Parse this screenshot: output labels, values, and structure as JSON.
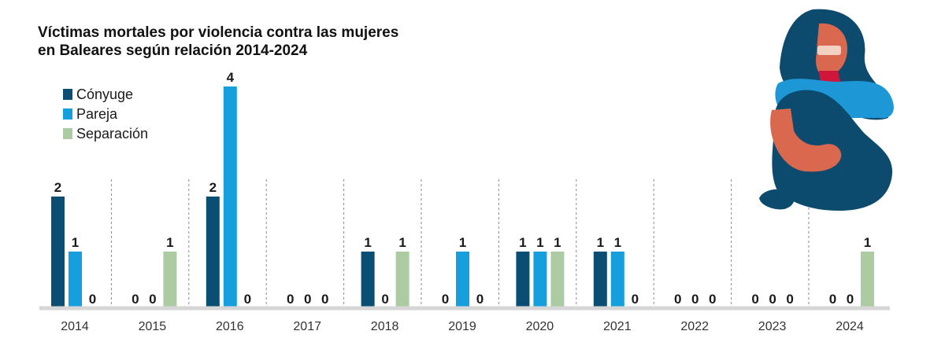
{
  "title": {
    "line1": "Víctimas mortales por violencia contra las mujeres",
    "line2": "en Baleares según relación 2014-2024"
  },
  "colors": {
    "conyuge": "#0a4f73",
    "pareja": "#159fdc",
    "separacion": "#adcba2",
    "baseline": "#d6d6d6",
    "separator": "#8a8a8a"
  },
  "illustration": {
    "icon": "seated-woman-with-gagged-mouth-illustration"
  },
  "chart_data": {
    "type": "bar",
    "title": "Víctimas mortales por violencia contra las mujeres en Baleares según relación 2014-2024",
    "xlabel": "",
    "ylabel": "",
    "ylim": [
      0,
      4
    ],
    "grid": false,
    "legend_position": "top-left",
    "categories": [
      "2014",
      "2015",
      "2016",
      "2017",
      "2018",
      "2019",
      "2020",
      "2021",
      "2022",
      "2023",
      "2024"
    ],
    "series": [
      {
        "name": "Cónyuge",
        "color": "#0a4f73",
        "values": [
          2,
          0,
          2,
          0,
          1,
          0,
          1,
          1,
          0,
          0,
          0
        ]
      },
      {
        "name": "Pareja",
        "color": "#159fdc",
        "values": [
          1,
          0,
          4,
          0,
          0,
          1,
          1,
          1,
          0,
          0,
          0
        ]
      },
      {
        "name": "Separación",
        "color": "#adcba2",
        "values": [
          0,
          1,
          0,
          0,
          1,
          0,
          1,
          0,
          0,
          0,
          1
        ]
      }
    ]
  }
}
